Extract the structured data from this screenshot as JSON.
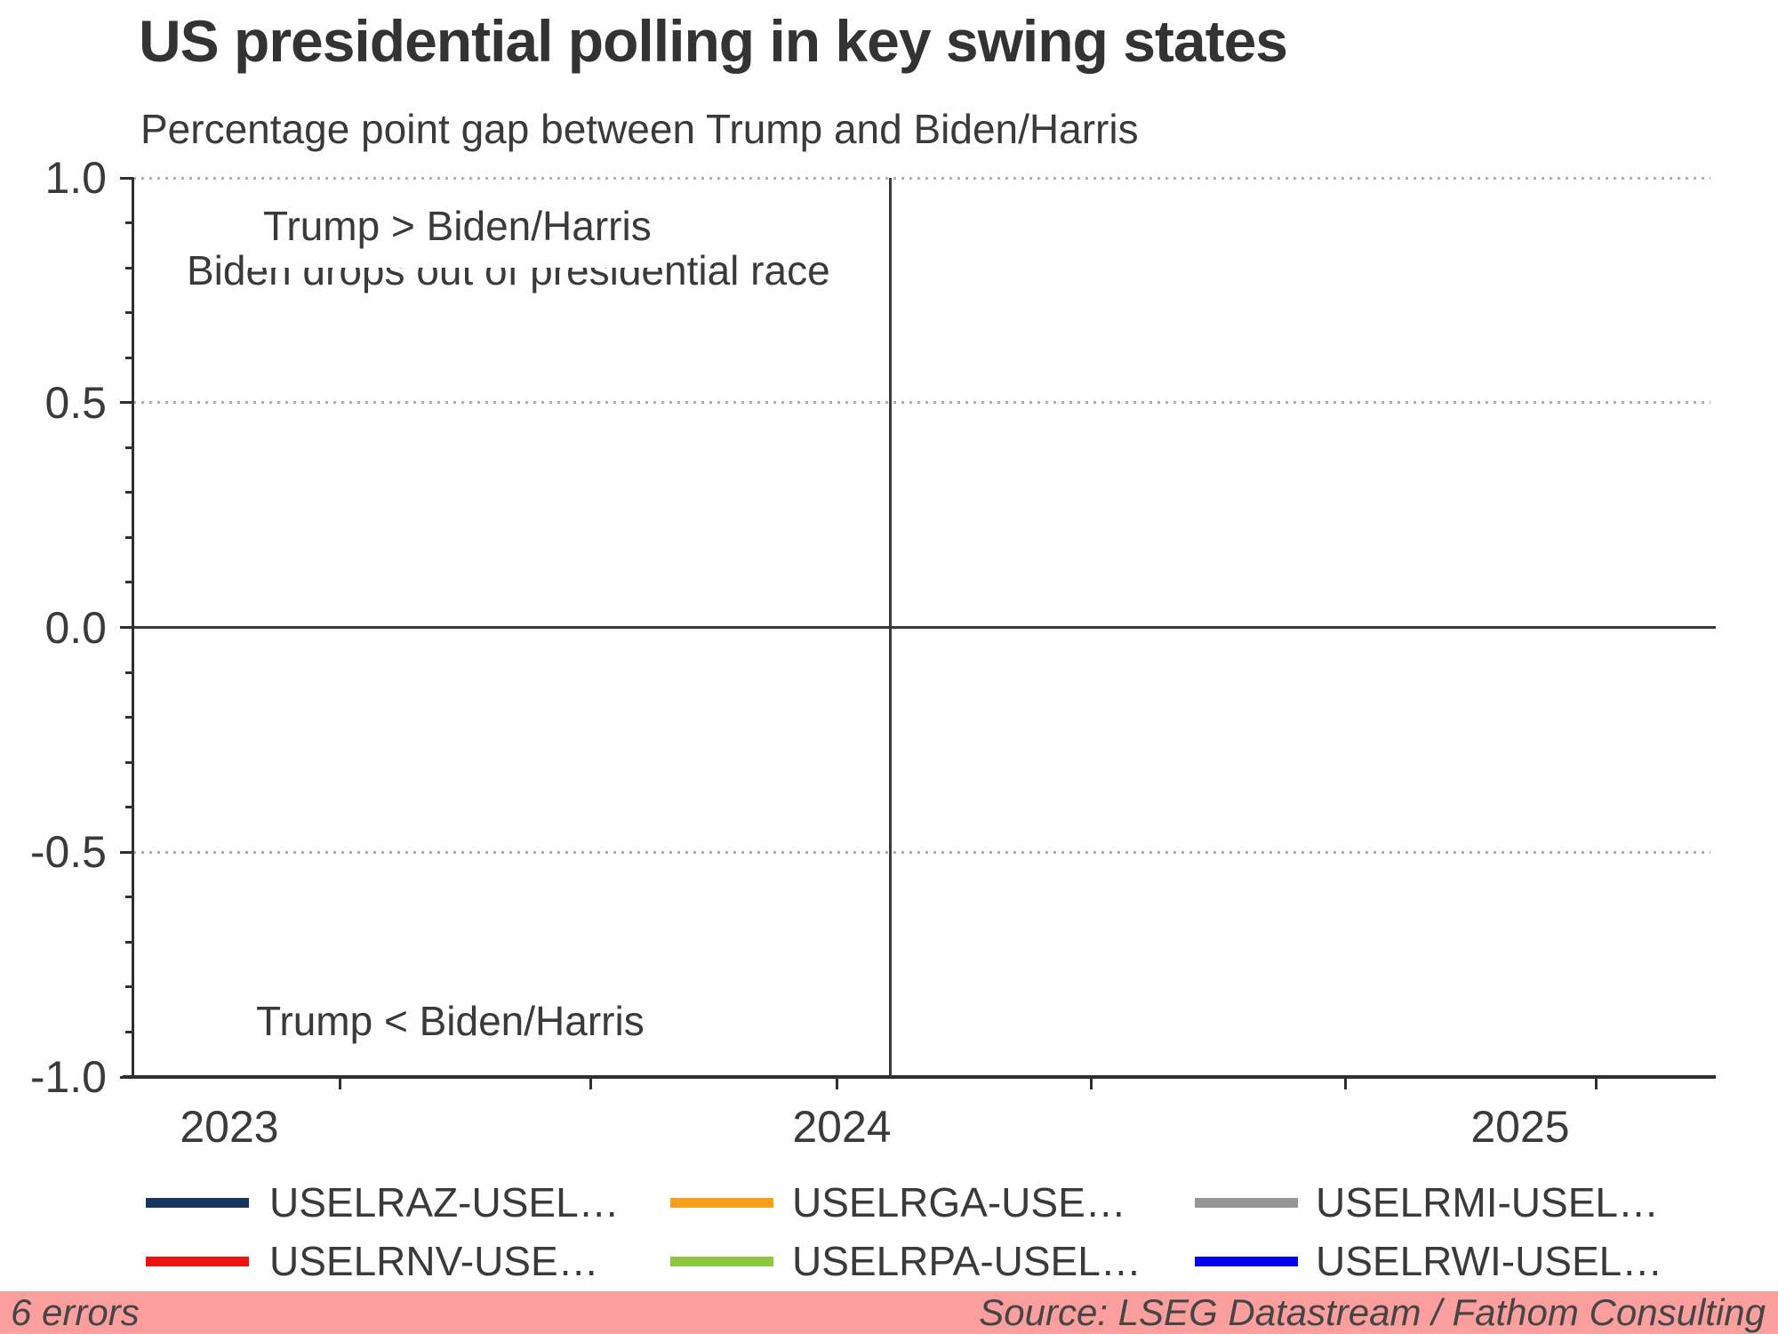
{
  "title": "US presidential polling in key swing states",
  "subtitle": "Percentage point gap between Trump and Biden/Harris",
  "annotations": {
    "above_zero": "Trump > Biden/Harris",
    "event": "Biden drops out of presidential race",
    "below_zero": "Trump < Biden/Harris"
  },
  "y_axis": {
    "labels": [
      "1.0",
      "0.5",
      "0.0",
      "-0.5",
      "-1.0"
    ]
  },
  "x_axis": {
    "labels": [
      "2023",
      "2024",
      "2025"
    ]
  },
  "legend": {
    "items": [
      {
        "label": "USELRAZ-USEL…",
        "color": "#17365D"
      },
      {
        "label": "USELRGA-USE…",
        "color": "#F9A01B"
      },
      {
        "label": "USELRMI-USEL…",
        "color": "#969696"
      },
      {
        "label": "USELRNV-USE…",
        "color": "#EE1111"
      },
      {
        "label": "USELRPA-USEL…",
        "color": "#8DC63F"
      },
      {
        "label": "USELRWI-USEL…",
        "color": "#0000EE"
      }
    ]
  },
  "footer": {
    "error_text": "6 errors",
    "source_text": "Source: LSEG Datastream / Fathom Consulting",
    "bar_color": "#FA9E9E"
  },
  "chart_data": {
    "type": "line",
    "title": "US presidential polling in key swing states",
    "subtitle": "Percentage point gap between Trump and Biden/Harris",
    "xlabel": "",
    "ylabel": "",
    "x_ticks": [
      "2023",
      "2024",
      "2025"
    ],
    "ylim": [
      -1.0,
      1.0
    ],
    "y_ticks": [
      1.0,
      0.5,
      0.0,
      -0.5,
      -1.0
    ],
    "y_minor_tick_step": 0.1,
    "grid": "dotted horizontal gridlines at 1.0, 0.5 and -0.5; solid line at 0.0",
    "legend_position": "bottom",
    "series": [
      {
        "name": "USELRAZ-USEL…",
        "color": "#17365D",
        "values": []
      },
      {
        "name": "USELRGA-USE…",
        "color": "#F9A01B",
        "values": []
      },
      {
        "name": "USELRMI-USEL…",
        "color": "#969696",
        "values": []
      },
      {
        "name": "USELRNV-USE…",
        "color": "#EE1111",
        "values": []
      },
      {
        "name": "USELRPA-USEL…",
        "color": "#8DC63F",
        "values": []
      },
      {
        "name": "USELRWI-USEL…",
        "color": "#0000EE",
        "values": []
      }
    ],
    "annotations": [
      {
        "text": "Trump > Biden/Harris",
        "region": "upper left"
      },
      {
        "text": "Biden drops out of presidential race",
        "region": "vertical event line, mid-2024"
      },
      {
        "text": "Trump < Biden/Harris",
        "region": "lower left"
      }
    ],
    "note": "No data lines are drawn; status bar reports 6 errors"
  }
}
